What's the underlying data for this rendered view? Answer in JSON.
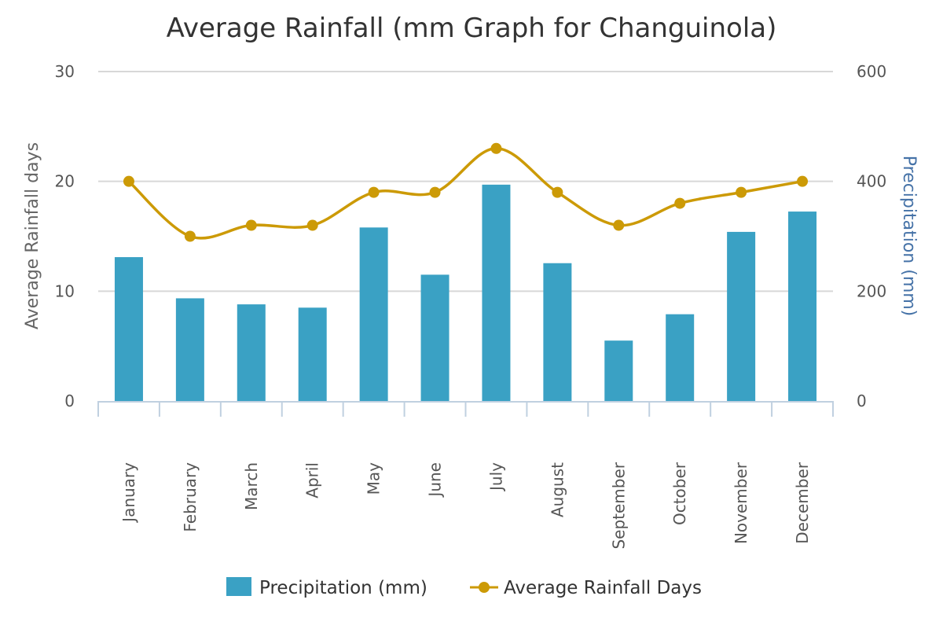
{
  "chart_data": {
    "type": "bar",
    "title": "Average Rainfall (mm Graph for Changuinola)",
    "categories": [
      "January",
      "February",
      "March",
      "April",
      "May",
      "June",
      "July",
      "August",
      "September",
      "October",
      "November",
      "December"
    ],
    "series": [
      {
        "name": "Precipitation (mm)",
        "type": "bar",
        "axis": "right",
        "color": "#3AA1C4",
        "values": [
          262,
          187,
          176,
          170,
          316,
          230,
          394,
          251,
          110,
          158,
          308,
          345
        ]
      },
      {
        "name": "Average Rainfall Days",
        "type": "line",
        "axis": "left",
        "color": "#CC9A06",
        "values": [
          20,
          15,
          16,
          16,
          19,
          19,
          23,
          19,
          16,
          18,
          19,
          20
        ]
      }
    ],
    "y_left": {
      "label": "Average Rainfall days",
      "ylim": [
        0,
        30
      ],
      "ticks": [
        0,
        10,
        20,
        30
      ]
    },
    "y_right": {
      "label": "Precipitation (mm)",
      "ylim": [
        0,
        600
      ],
      "ticks": [
        0,
        200,
        400,
        600
      ]
    },
    "grid": true,
    "legend_position": "bottom-center"
  }
}
